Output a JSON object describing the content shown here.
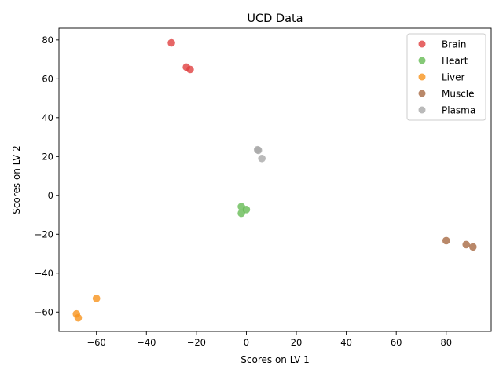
{
  "chart_data": {
    "type": "scatter",
    "title": "UCD Data",
    "xlabel": "Scores on LV 1",
    "ylabel": "Scores on LV 2",
    "xlim": [
      -75,
      98
    ],
    "ylim": [
      -70,
      86
    ],
    "xticks": [
      -60,
      -40,
      -20,
      0,
      20,
      40,
      60,
      80
    ],
    "xtick_labels": [
      "−60",
      "−40",
      "−20",
      "0",
      "20",
      "40",
      "60",
      "80"
    ],
    "yticks": [
      -60,
      -40,
      -20,
      0,
      20,
      40,
      60,
      80
    ],
    "ytick_labels": [
      "−60",
      "−40",
      "−20",
      "0",
      "20",
      "40",
      "60",
      "80"
    ],
    "grid": false,
    "legend_position": "top-right",
    "series": [
      {
        "name": "Brain",
        "color": "#e04040",
        "points": [
          [
            -30,
            78.5
          ],
          [
            -24,
            66
          ],
          [
            -22.5,
            64.8
          ]
        ]
      },
      {
        "name": "Heart",
        "color": "#66bb55",
        "points": [
          [
            -2,
            -5.8
          ],
          [
            0,
            -7.3
          ],
          [
            -2,
            -9.2
          ]
        ]
      },
      {
        "name": "Liver",
        "color": "#f7941d",
        "points": [
          [
            -60,
            -53
          ],
          [
            -68,
            -61
          ],
          [
            -67.3,
            -63
          ]
        ]
      },
      {
        "name": "Muscle",
        "color": "#a86a43",
        "points": [
          [
            80,
            -23.3
          ],
          [
            88,
            -25.3
          ],
          [
            90.7,
            -26.5
          ]
        ]
      },
      {
        "name": "Plasma",
        "color": "#a9a9a9",
        "points": [
          [
            4.5,
            23.5
          ],
          [
            4.8,
            23.2
          ],
          [
            6.2,
            19
          ]
        ]
      }
    ]
  }
}
